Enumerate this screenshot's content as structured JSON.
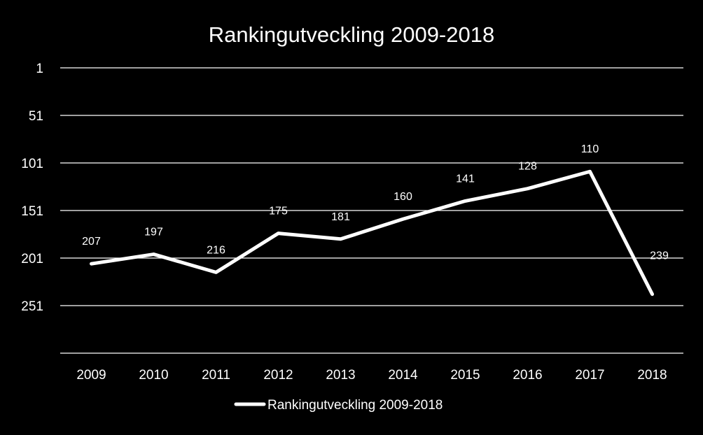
{
  "chart_data": {
    "type": "line",
    "title": "Rankingutveckling 2009-2018",
    "xlabel": "",
    "ylabel": "",
    "categories": [
      "2009",
      "2010",
      "2011",
      "2012",
      "2013",
      "2014",
      "2015",
      "2016",
      "2017",
      "2018"
    ],
    "series": [
      {
        "name": "Rankingutveckling 2009-2018",
        "values": [
          207,
          197,
          216,
          175,
          181,
          160,
          141,
          128,
          110,
          239
        ],
        "color": "#ffffff"
      }
    ],
    "yticks": [
      "1",
      "51",
      "101",
      "151",
      "201",
      "251"
    ],
    "ylim": [
      1,
      301
    ],
    "y_reversed": true,
    "grid": true,
    "legend_position": "bottom",
    "background": "#000000"
  }
}
